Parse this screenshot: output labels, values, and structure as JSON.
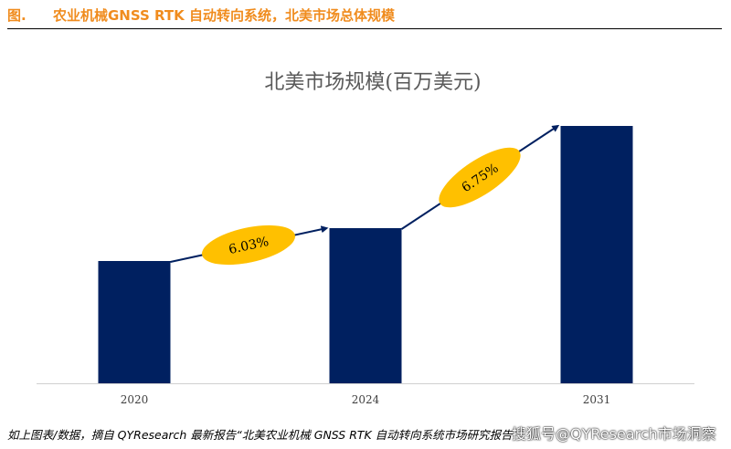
{
  "figure": {
    "number": "图.",
    "title": "农业机械GNSS RTK 自动转向系统，北美市场总体规模"
  },
  "chart_data": {
    "type": "bar",
    "title": "北美市场规模(百万美元)",
    "categories": [
      "2020",
      "2024",
      "2031"
    ],
    "values": [
      134,
      170,
      282
    ],
    "value_note": "relative heights, no value labels shown",
    "ylim": [
      0,
      315
    ],
    "xlabel": "",
    "ylabel": "",
    "grid": false,
    "bar_color": "#002060",
    "annotations": [
      {
        "text": "6.03%",
        "from": "2020",
        "to": "2024"
      },
      {
        "text": "6.75%",
        "from": "2024",
        "to": "2031"
      }
    ],
    "annotation_color": "#ffc000"
  },
  "footer": {
    "source": "如上图表/数据，摘自 QYResearch 最新报告“北美农业机械 GNSS RTK 自动转向系统市场研究报告",
    "watermark": "搜狐号@QYResearch市场洞察"
  }
}
